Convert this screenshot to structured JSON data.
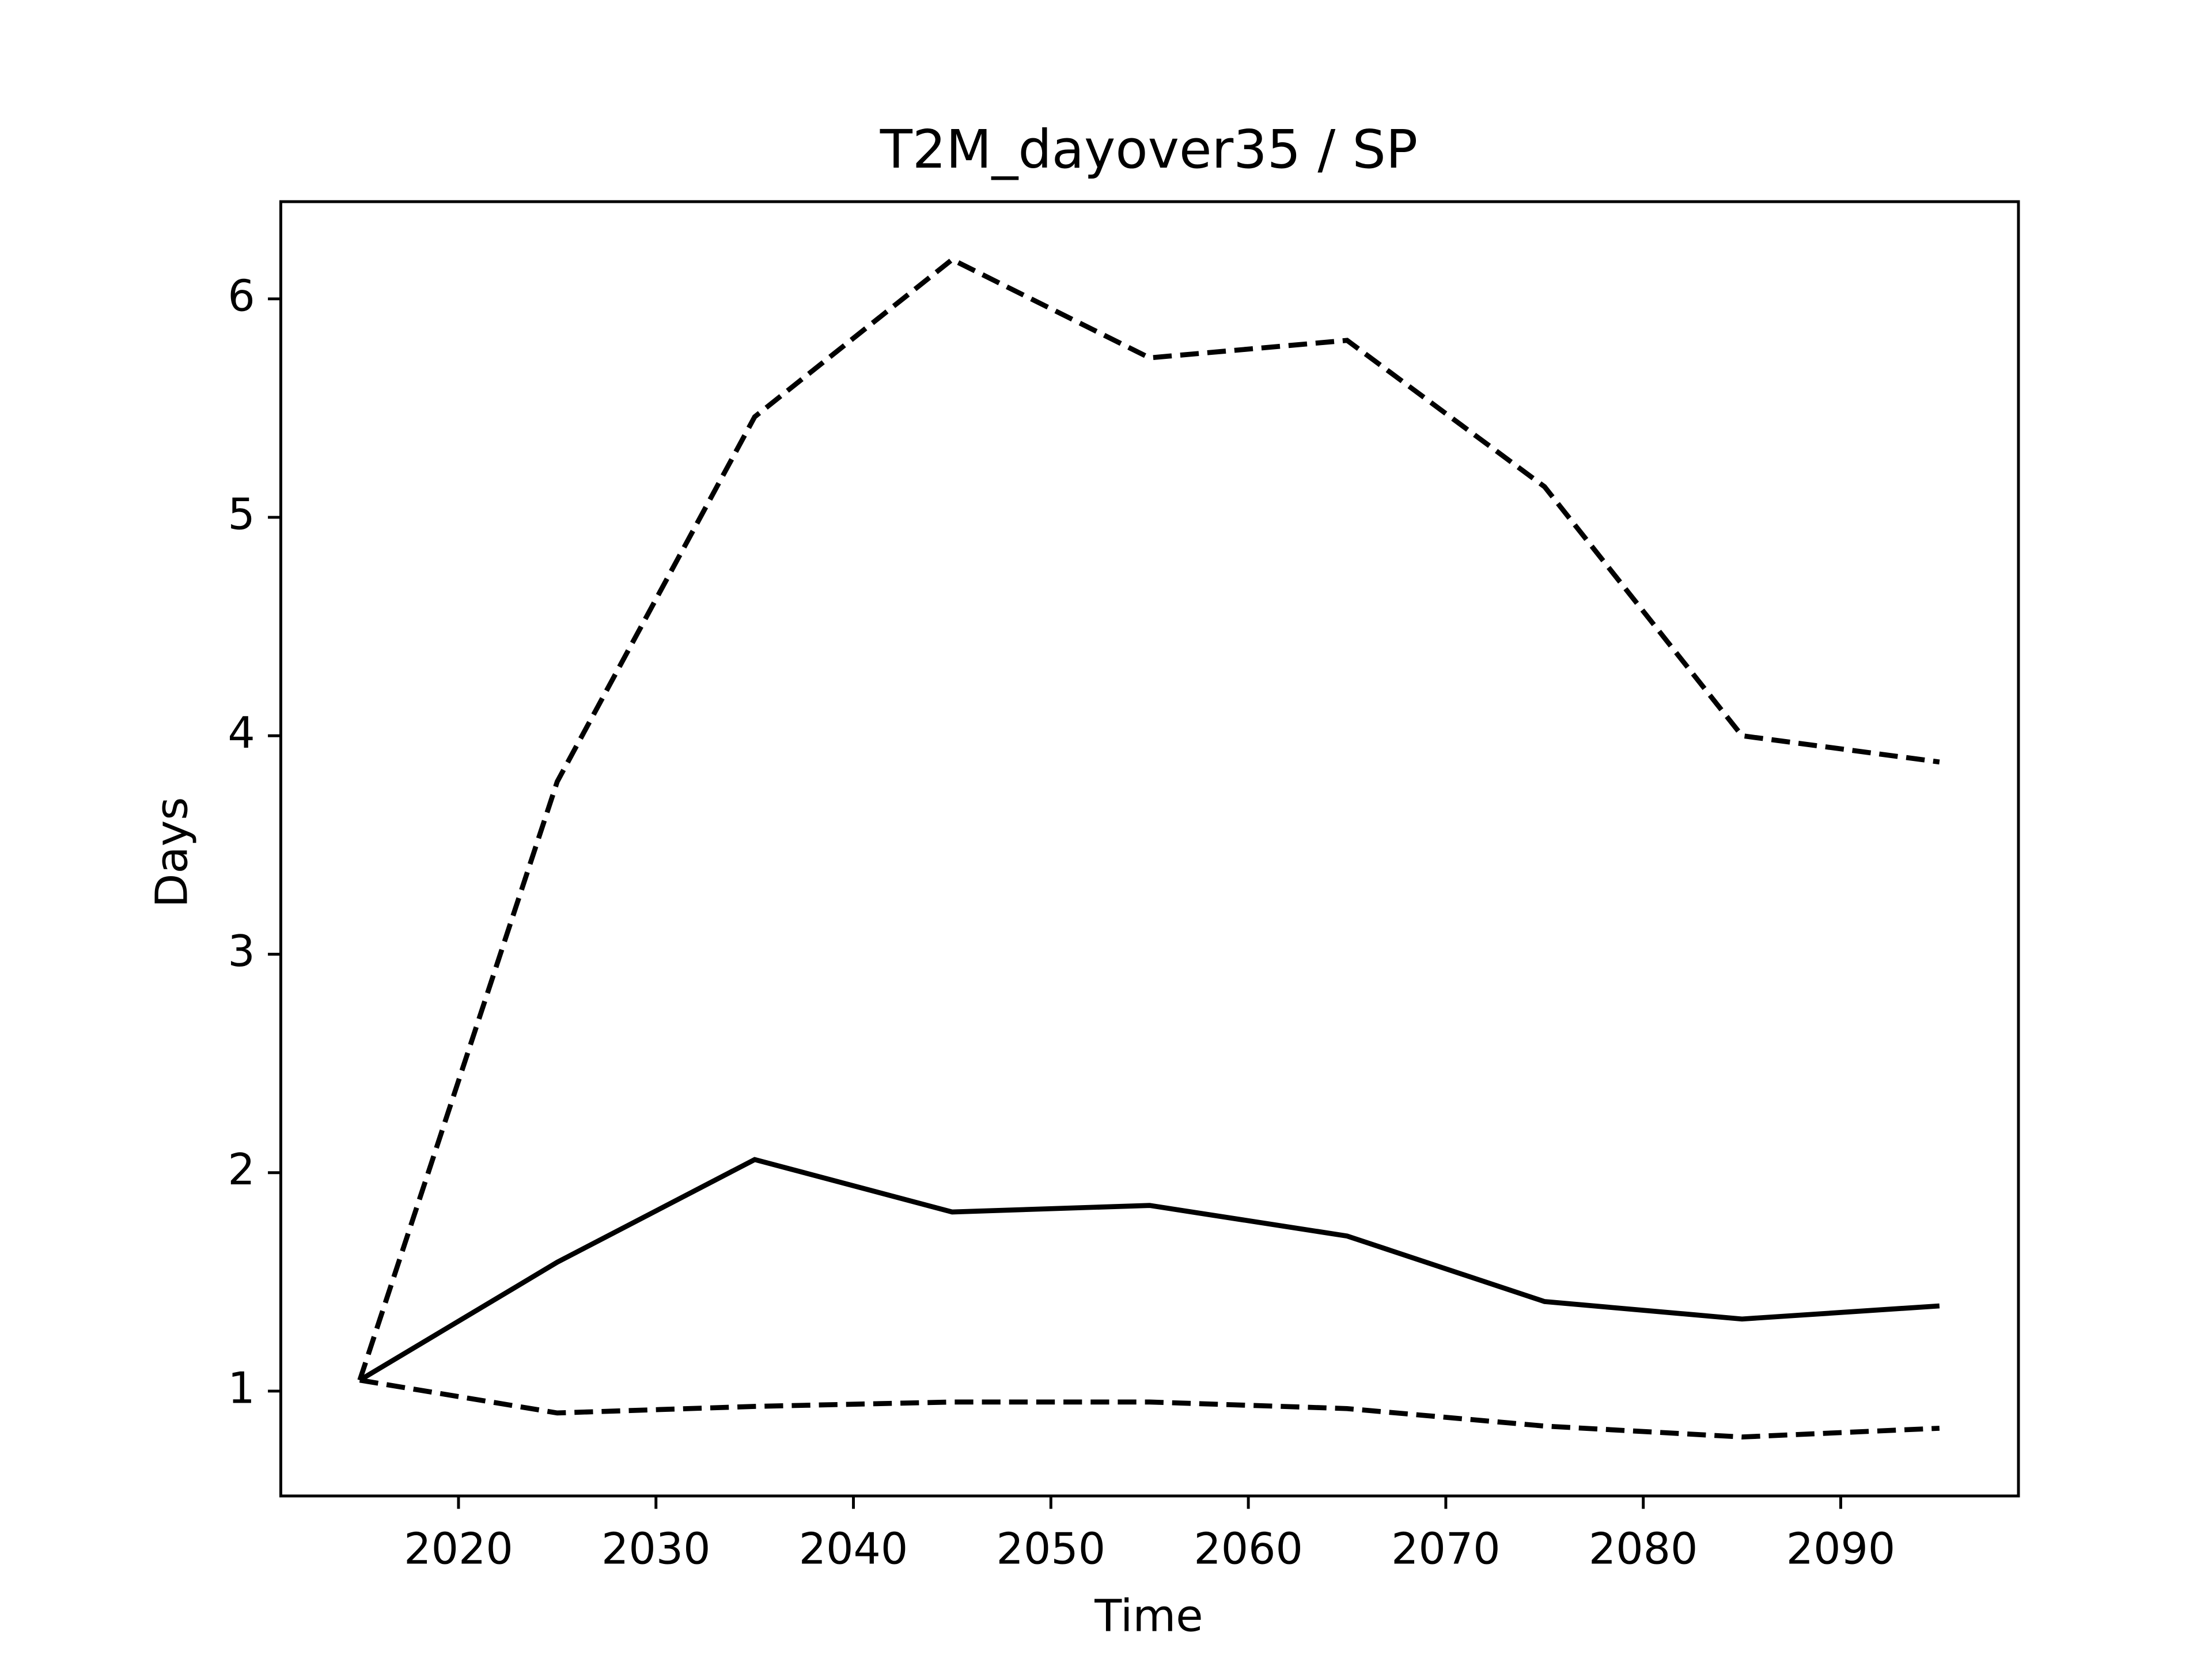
{
  "chart_data": {
    "type": "line",
    "title": "T2M_dayover35 / SP",
    "xlabel": "Time",
    "ylabel": "Days",
    "x": [
      2015,
      2025,
      2035,
      2045,
      2055,
      2065,
      2075,
      2085,
      2095
    ],
    "series": [
      {
        "color": "#000000",
        "linestyle": "solid",
        "values": [
          1.05,
          1.59,
          2.06,
          1.82,
          1.85,
          1.71,
          1.41,
          1.33,
          1.39
        ]
      },
      {
        "color": "#000000",
        "linestyle": "dashed",
        "values": [
          1.05,
          3.79,
          5.46,
          6.18,
          5.73,
          5.81,
          5.14,
          4.0,
          3.88
        ]
      },
      {
        "color": "#000000",
        "linestyle": "dashed",
        "values": [
          1.05,
          0.9,
          0.93,
          0.95,
          0.95,
          0.92,
          0.84,
          0.79,
          0.83
        ]
      }
    ],
    "xlim": [
      2011,
      2099
    ],
    "ylim": [
      0.52,
      6.445
    ],
    "xticks": [
      2020,
      2030,
      2040,
      2050,
      2060,
      2070,
      2080,
      2090
    ],
    "yticks": [
      1,
      2,
      3,
      4,
      5,
      6
    ],
    "grid": false
  }
}
